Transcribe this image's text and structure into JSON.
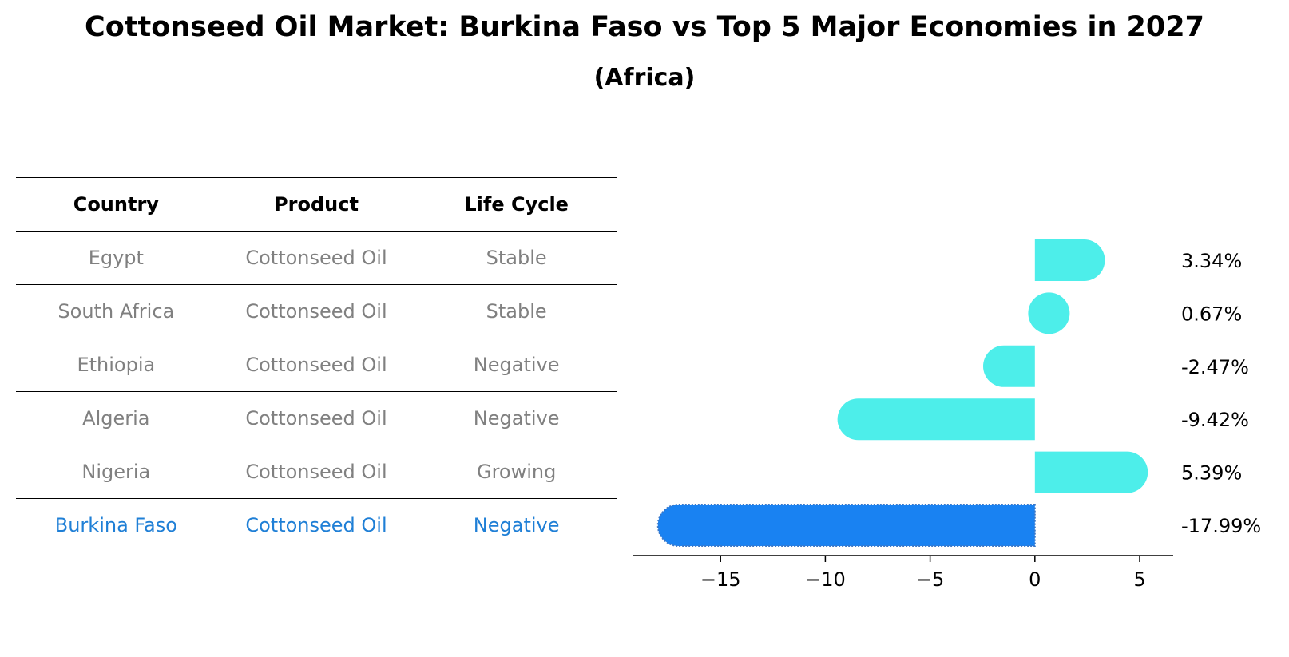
{
  "title": "Cottonseed Oil Market: Burkina Faso vs Top 5 Major Economies in 2027",
  "subtitle": "(Africa)",
  "table": {
    "headers": [
      "Country",
      "Product",
      "Life Cycle"
    ],
    "rows": [
      {
        "country": "Egypt",
        "product": "Cottonseed Oil",
        "life_cycle": "Stable"
      },
      {
        "country": "South Africa",
        "product": "Cottonseed Oil",
        "life_cycle": "Stable"
      },
      {
        "country": "Ethiopia",
        "product": "Cottonseed Oil",
        "life_cycle": "Negative"
      },
      {
        "country": "Algeria",
        "product": "Cottonseed Oil",
        "life_cycle": "Negative"
      },
      {
        "country": "Nigeria",
        "product": "Cottonseed Oil",
        "life_cycle": "Growing"
      },
      {
        "country": "Burkina Faso",
        "product": "Cottonseed Oil",
        "life_cycle": "Negative",
        "highlight": true
      }
    ]
  },
  "chart_data": {
    "type": "bar",
    "orientation": "horizontal",
    "categories": [
      "Egypt",
      "South Africa",
      "Ethiopia",
      "Algeria",
      "Nigeria",
      "Burkina Faso"
    ],
    "values": [
      3.34,
      0.67,
      -2.47,
      -9.42,
      5.39,
      -17.99
    ],
    "value_labels": [
      "3.34%",
      "0.67%",
      "-2.47%",
      "-9.42%",
      "5.39%",
      "-17.99%"
    ],
    "xlim": [
      -19.2,
      6.6
    ],
    "xticks": [
      -15,
      -10,
      -5,
      0,
      5
    ],
    "xtick_labels": [
      "−15",
      "−10",
      "−5",
      "0",
      "5"
    ],
    "grid": false,
    "colors": {
      "default": "#4deeea",
      "highlight": "#1982f2"
    },
    "highlight_index": 5
  }
}
